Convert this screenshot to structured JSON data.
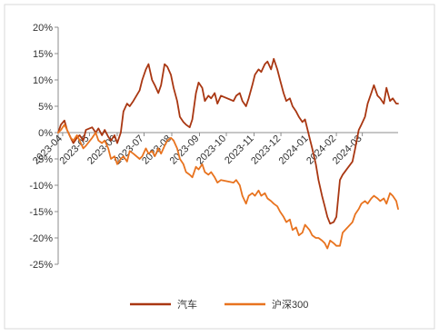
{
  "chart_data": {
    "type": "line",
    "title": "",
    "xlabel": "",
    "ylabel": "",
    "ylim": [
      -25,
      20
    ],
    "y_ticks": [
      20,
      15,
      10,
      5,
      0,
      -5,
      -10,
      -15,
      -20,
      -25
    ],
    "y_tick_labels": [
      "20%",
      "15%",
      "10%",
      "5%",
      "0%",
      "-5%",
      "-10%",
      "-15%",
      "-20%",
      "-25%"
    ],
    "x_tick_labels": [
      "2023-04",
      "2023-05",
      "2023-06",
      "2023-07",
      "2023-08",
      "2023-09",
      "2023-10",
      "2023-11",
      "2023-12",
      "2024-01",
      "2024-02",
      "2024-03"
    ],
    "x_tick_dates": [
      "2023-04-01",
      "2023-05-01",
      "2023-06-01",
      "2023-07-01",
      "2023-08-01",
      "2023-09-01",
      "2023-10-01",
      "2023-11-01",
      "2023-12-01",
      "2024-01-01",
      "2024-02-01",
      "2024-03-01"
    ],
    "x_range": [
      "2023-03-27",
      "2024-04-10"
    ],
    "grid": false,
    "legend_position": "bottom-center",
    "series": [
      {
        "name": "汽车",
        "color": "#A93712",
        "points": [
          [
            "2023-03-27",
            0.0
          ],
          [
            "2023-03-30",
            1.5
          ],
          [
            "2023-04-03",
            2.3
          ],
          [
            "2023-04-06",
            0.5
          ],
          [
            "2023-04-10",
            -1.0
          ],
          [
            "2023-04-13",
            -2.0
          ],
          [
            "2023-04-17",
            -1.0
          ],
          [
            "2023-04-20",
            -0.5
          ],
          [
            "2023-04-24",
            -1.5
          ],
          [
            "2023-04-27",
            0.5
          ],
          [
            "2023-05-04",
            1.0
          ],
          [
            "2023-05-08",
            0.0
          ],
          [
            "2023-05-11",
            0.8
          ],
          [
            "2023-05-15",
            -0.5
          ],
          [
            "2023-05-18",
            0.5
          ],
          [
            "2023-05-22",
            -0.8
          ],
          [
            "2023-05-25",
            -1.5
          ],
          [
            "2023-05-29",
            -0.5
          ],
          [
            "2023-06-01",
            -2.0
          ],
          [
            "2023-06-05",
            0.0
          ],
          [
            "2023-06-08",
            4.0
          ],
          [
            "2023-06-12",
            5.5
          ],
          [
            "2023-06-15",
            5.0
          ],
          [
            "2023-06-19",
            6.0
          ],
          [
            "2023-06-26",
            8.0
          ],
          [
            "2023-06-29",
            10.0
          ],
          [
            "2023-07-03",
            12.0
          ],
          [
            "2023-07-06",
            13.0
          ],
          [
            "2023-07-10",
            10.0
          ],
          [
            "2023-07-13",
            9.0
          ],
          [
            "2023-07-17",
            7.5
          ],
          [
            "2023-07-20",
            9.0
          ],
          [
            "2023-07-24",
            13.0
          ],
          [
            "2023-07-27",
            12.5
          ],
          [
            "2023-07-31",
            11.0
          ],
          [
            "2023-08-03",
            8.5
          ],
          [
            "2023-08-07",
            6.0
          ],
          [
            "2023-08-10",
            3.0
          ],
          [
            "2023-08-14",
            2.0
          ],
          [
            "2023-08-17",
            1.5
          ],
          [
            "2023-08-21",
            1.0
          ],
          [
            "2023-08-24",
            2.5
          ],
          [
            "2023-08-28",
            7.5
          ],
          [
            "2023-08-31",
            9.5
          ],
          [
            "2023-09-04",
            8.5
          ],
          [
            "2023-09-07",
            6.0
          ],
          [
            "2023-09-11",
            7.0
          ],
          [
            "2023-09-14",
            6.5
          ],
          [
            "2023-09-18",
            7.5
          ],
          [
            "2023-09-21",
            5.5
          ],
          [
            "2023-09-25",
            7.0
          ],
          [
            "2023-10-09",
            6.0
          ],
          [
            "2023-10-12",
            7.0
          ],
          [
            "2023-10-16",
            7.5
          ],
          [
            "2023-10-19",
            6.0
          ],
          [
            "2023-10-23",
            5.0
          ],
          [
            "2023-10-26",
            6.5
          ],
          [
            "2023-10-30",
            9.0
          ],
          [
            "2023-11-02",
            11.0
          ],
          [
            "2023-11-06",
            12.0
          ],
          [
            "2023-11-09",
            11.5
          ],
          [
            "2023-11-13",
            13.0
          ],
          [
            "2023-11-16",
            13.5
          ],
          [
            "2023-11-20",
            12.0
          ],
          [
            "2023-11-23",
            14.0
          ],
          [
            "2023-11-27",
            12.0
          ],
          [
            "2023-11-30",
            10.0
          ],
          [
            "2023-12-04",
            7.5
          ],
          [
            "2023-12-07",
            6.0
          ],
          [
            "2023-12-11",
            6.5
          ],
          [
            "2023-12-14",
            5.0
          ],
          [
            "2023-12-18",
            4.0
          ],
          [
            "2023-12-21",
            3.0
          ],
          [
            "2023-12-25",
            2.0
          ],
          [
            "2023-12-28",
            2.5
          ],
          [
            "2024-01-02",
            -1.0
          ],
          [
            "2024-01-05",
            -3.0
          ],
          [
            "2024-01-09",
            -6.0
          ],
          [
            "2024-01-12",
            -9.0
          ],
          [
            "2024-01-16",
            -12.0
          ],
          [
            "2024-01-19",
            -14.0
          ],
          [
            "2024-01-22",
            -16.0
          ],
          [
            "2024-01-25",
            -17.3
          ],
          [
            "2024-01-29",
            -17.0
          ],
          [
            "2024-02-01",
            -16.0
          ],
          [
            "2024-02-05",
            -9.0
          ],
          [
            "2024-02-08",
            -8.0
          ],
          [
            "2024-02-19",
            -5.5
          ],
          [
            "2024-02-22",
            -3.0
          ],
          [
            "2024-02-26",
            0.5
          ],
          [
            "2024-02-29",
            1.5
          ],
          [
            "2024-03-04",
            3.0
          ],
          [
            "2024-03-07",
            5.5
          ],
          [
            "2024-03-11",
            7.5
          ],
          [
            "2024-03-14",
            9.0
          ],
          [
            "2024-03-18",
            7.0
          ],
          [
            "2024-03-21",
            6.5
          ],
          [
            "2024-03-25",
            5.5
          ],
          [
            "2024-03-28",
            8.5
          ],
          [
            "2024-04-01",
            6.0
          ],
          [
            "2024-04-04",
            6.5
          ],
          [
            "2024-04-08",
            5.5
          ],
          [
            "2024-04-10",
            5.5
          ]
        ]
      },
      {
        "name": "沪深300",
        "color": "#E8731F",
        "points": [
          [
            "2023-03-27",
            0.0
          ],
          [
            "2023-03-30",
            0.5
          ],
          [
            "2023-04-03",
            1.5
          ],
          [
            "2023-04-06",
            0.5
          ],
          [
            "2023-04-10",
            -1.0
          ],
          [
            "2023-04-13",
            -1.5
          ],
          [
            "2023-04-17",
            -0.5
          ],
          [
            "2023-04-20",
            -1.5
          ],
          [
            "2023-04-24",
            -3.0
          ],
          [
            "2023-04-27",
            -2.5
          ],
          [
            "2023-05-04",
            -1.0
          ],
          [
            "2023-05-08",
            0.0
          ],
          [
            "2023-05-11",
            -1.5
          ],
          [
            "2023-05-15",
            -2.0
          ],
          [
            "2023-05-18",
            -1.5
          ],
          [
            "2023-05-22",
            -3.0
          ],
          [
            "2023-05-25",
            -5.0
          ],
          [
            "2023-05-29",
            -4.5
          ],
          [
            "2023-06-01",
            -6.0
          ],
          [
            "2023-06-05",
            -5.0
          ],
          [
            "2023-06-08",
            -4.5
          ],
          [
            "2023-06-12",
            -5.5
          ],
          [
            "2023-06-15",
            -3.5
          ],
          [
            "2023-06-19",
            -4.0
          ],
          [
            "2023-06-26",
            -5.0
          ],
          [
            "2023-06-29",
            -4.5
          ],
          [
            "2023-07-03",
            -3.0
          ],
          [
            "2023-07-06",
            -4.0
          ],
          [
            "2023-07-10",
            -3.5
          ],
          [
            "2023-07-13",
            -4.5
          ],
          [
            "2023-07-17",
            -3.0
          ],
          [
            "2023-07-20",
            -4.0
          ],
          [
            "2023-07-24",
            -2.5
          ],
          [
            "2023-07-27",
            -1.5
          ],
          [
            "2023-07-31",
            -1.0
          ],
          [
            "2023-08-03",
            -1.5
          ],
          [
            "2023-08-07",
            -3.0
          ],
          [
            "2023-08-10",
            -5.0
          ],
          [
            "2023-08-14",
            -6.0
          ],
          [
            "2023-08-17",
            -7.5
          ],
          [
            "2023-08-21",
            -8.0
          ],
          [
            "2023-08-24",
            -8.5
          ],
          [
            "2023-08-28",
            -6.5
          ],
          [
            "2023-08-31",
            -7.0
          ],
          [
            "2023-09-04",
            -6.0
          ],
          [
            "2023-09-07",
            -7.5
          ],
          [
            "2023-09-11",
            -8.0
          ],
          [
            "2023-09-14",
            -7.5
          ],
          [
            "2023-09-18",
            -8.5
          ],
          [
            "2023-09-21",
            -9.5
          ],
          [
            "2023-09-25",
            -9.0
          ],
          [
            "2023-10-09",
            -9.5
          ],
          [
            "2023-10-12",
            -9.0
          ],
          [
            "2023-10-16",
            -10.0
          ],
          [
            "2023-10-19",
            -12.0
          ],
          [
            "2023-10-23",
            -13.5
          ],
          [
            "2023-10-26",
            -12.0
          ],
          [
            "2023-10-30",
            -11.5
          ],
          [
            "2023-11-02",
            -12.0
          ],
          [
            "2023-11-06",
            -11.0
          ],
          [
            "2023-11-09",
            -12.0
          ],
          [
            "2023-11-13",
            -11.5
          ],
          [
            "2023-11-16",
            -12.5
          ],
          [
            "2023-11-20",
            -13.0
          ],
          [
            "2023-11-23",
            -13.5
          ],
          [
            "2023-11-27",
            -14.0
          ],
          [
            "2023-11-30",
            -15.0
          ],
          [
            "2023-12-04",
            -16.0
          ],
          [
            "2023-12-07",
            -17.0
          ],
          [
            "2023-12-11",
            -16.5
          ],
          [
            "2023-12-14",
            -18.5
          ],
          [
            "2023-12-18",
            -18.0
          ],
          [
            "2023-12-21",
            -19.5
          ],
          [
            "2023-12-25",
            -19.0
          ],
          [
            "2023-12-28",
            -17.5
          ],
          [
            "2024-01-02",
            -18.5
          ],
          [
            "2024-01-05",
            -19.5
          ],
          [
            "2024-01-09",
            -20.0
          ],
          [
            "2024-01-12",
            -20.0
          ],
          [
            "2024-01-16",
            -20.5
          ],
          [
            "2024-01-19",
            -21.0
          ],
          [
            "2024-01-22",
            -22.0
          ],
          [
            "2024-01-25",
            -20.5
          ],
          [
            "2024-01-29",
            -21.0
          ],
          [
            "2024-02-01",
            -21.5
          ],
          [
            "2024-02-05",
            -21.5
          ],
          [
            "2024-02-08",
            -19.0
          ],
          [
            "2024-02-19",
            -17.0
          ],
          [
            "2024-02-22",
            -15.5
          ],
          [
            "2024-02-26",
            -14.5
          ],
          [
            "2024-02-29",
            -13.5
          ],
          [
            "2024-03-04",
            -13.0
          ],
          [
            "2024-03-07",
            -13.5
          ],
          [
            "2024-03-11",
            -12.5
          ],
          [
            "2024-03-14",
            -12.0
          ],
          [
            "2024-03-18",
            -12.5
          ],
          [
            "2024-03-21",
            -13.0
          ],
          [
            "2024-03-25",
            -12.5
          ],
          [
            "2024-03-28",
            -13.5
          ],
          [
            "2024-04-01",
            -11.5
          ],
          [
            "2024-04-04",
            -12.0
          ],
          [
            "2024-04-08",
            -13.0
          ],
          [
            "2024-04-10",
            -14.5
          ]
        ]
      }
    ]
  }
}
